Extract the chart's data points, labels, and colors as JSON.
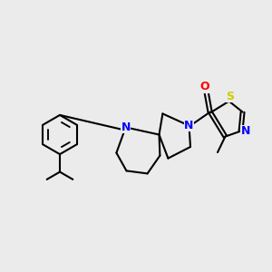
{
  "background_color": "#ebebeb",
  "bond_color": "#000000",
  "bond_width": 1.5,
  "atom_colors": {
    "N": "#0000ff",
    "O": "#ff0000",
    "S": "#cccc00",
    "C": "#000000"
  },
  "figsize": [
    3.0,
    3.0
  ],
  "dpi": 100
}
